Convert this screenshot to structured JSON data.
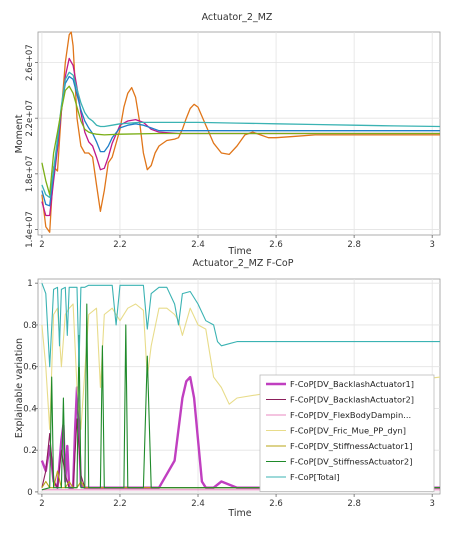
{
  "chart_data": [
    {
      "type": "line",
      "title": "Actuator_2_MZ",
      "xlabel": "Time",
      "ylabel": "Moment",
      "xlim": [
        1.99,
        3.02
      ],
      "ylim": [
        13600000,
        28200000
      ],
      "grid": true,
      "xticks": [
        2,
        2.2,
        2.4,
        2.6,
        2.8,
        3
      ],
      "xtick_labels": [
        "2",
        "2.2",
        "2.4",
        "2.6",
        "2.8",
        "3"
      ],
      "yticks": [
        14000000,
        18000000,
        22000000,
        26000000
      ],
      "ytick_labels": [
        "1.4e+07",
        "1.8e+07",
        "2.2e+07",
        "2.6e+07"
      ],
      "series": [
        {
          "color": "#e0761a",
          "x": [
            2.0,
            2.01,
            2.02,
            2.03,
            2.04,
            2.05,
            2.06,
            2.07,
            2.075,
            2.08,
            2.09,
            2.1,
            2.11,
            2.12,
            2.13,
            2.14,
            2.15,
            2.16,
            2.17,
            2.18,
            2.2,
            2.21,
            2.22,
            2.23,
            2.24,
            2.25,
            2.26,
            2.27,
            2.28,
            2.29,
            2.3,
            2.32,
            2.34,
            2.35,
            2.36,
            2.37,
            2.38,
            2.39,
            2.4,
            2.42,
            2.44,
            2.46,
            2.48,
            2.5,
            2.52,
            2.54,
            2.56,
            2.58,
            2.6,
            2.65,
            2.7,
            2.8,
            2.9,
            3.02
          ],
          "y": [
            16500000,
            14200000,
            13800000,
            18500000,
            18200000,
            22500000,
            26000000,
            28000000,
            28200000,
            27200000,
            22000000,
            20000000,
            19500000,
            19500000,
            19200000,
            17200000,
            15300000,
            16800000,
            18800000,
            19200000,
            21200000,
            22800000,
            23800000,
            24200000,
            23500000,
            21800000,
            19500000,
            18300000,
            18600000,
            19500000,
            20000000,
            20400000,
            20500000,
            20600000,
            21200000,
            22000000,
            22700000,
            23000000,
            22800000,
            21500000,
            20200000,
            19500000,
            19400000,
            20000000,
            20800000,
            21000000,
            20800000,
            20600000,
            20600000,
            20700000,
            20800000,
            20800000,
            20800000,
            20800000
          ]
        },
        {
          "color": "#c0188a",
          "x": [
            2.0,
            2.01,
            2.02,
            2.03,
            2.04,
            2.05,
            2.06,
            2.07,
            2.08,
            2.09,
            2.1,
            2.11,
            2.12,
            2.13,
            2.14,
            2.15,
            2.16,
            2.17,
            2.18,
            2.2,
            2.22,
            2.24,
            2.26,
            2.28,
            2.3,
            2.35,
            2.4,
            2.5,
            2.6,
            2.8,
            3.02
          ],
          "y": [
            16000000,
            15000000,
            15000000,
            17500000,
            19800000,
            22500000,
            25000000,
            26300000,
            25800000,
            24200000,
            22400000,
            21000000,
            20300000,
            20000000,
            19200000,
            18300000,
            18400000,
            19200000,
            20200000,
            21500000,
            21800000,
            21900000,
            21700000,
            21200000,
            21000000,
            20900000,
            20900000,
            20900000,
            20900000,
            20900000,
            20900000
          ]
        },
        {
          "color": "#1f7fc8",
          "x": [
            2.0,
            2.01,
            2.02,
            2.03,
            2.04,
            2.05,
            2.06,
            2.07,
            2.08,
            2.09,
            2.1,
            2.11,
            2.12,
            2.13,
            2.14,
            2.15,
            2.16,
            2.17,
            2.18,
            2.2,
            2.22,
            2.24,
            2.26,
            2.28,
            2.3,
            2.35,
            2.4,
            2.5,
            2.6,
            2.8,
            3.02
          ],
          "y": [
            16800000,
            15800000,
            15700000,
            18000000,
            20200000,
            22800000,
            24500000,
            25000000,
            24800000,
            23700000,
            22600000,
            21800000,
            21300000,
            20900000,
            20300000,
            19600000,
            19600000,
            20000000,
            20600000,
            21300000,
            21500000,
            21600000,
            21500000,
            21300000,
            21100000,
            21100000,
            21100000,
            21100000,
            21100000,
            21100000,
            21100000
          ]
        },
        {
          "color": "#3bb3b3",
          "x": [
            2.0,
            2.01,
            2.02,
            2.03,
            2.04,
            2.05,
            2.06,
            2.07,
            2.08,
            2.09,
            2.1,
            2.11,
            2.12,
            2.13,
            2.14,
            2.15,
            2.16,
            2.18,
            2.2,
            2.25,
            2.3,
            2.4,
            2.5,
            2.6,
            2.7,
            2.8,
            2.9,
            3.02
          ],
          "y": [
            17200000,
            16500000,
            16300000,
            18300000,
            20500000,
            22900000,
            24800000,
            25300000,
            25100000,
            24100000,
            23100000,
            22400000,
            22000000,
            21800000,
            21500000,
            21400000,
            21400000,
            21500000,
            21600000,
            21700000,
            21700000,
            21700000,
            21650000,
            21600000,
            21550000,
            21500000,
            21450000,
            21400000
          ]
        },
        {
          "color": "#7aae16",
          "x": [
            2.0,
            2.01,
            2.02,
            2.03,
            2.04,
            2.05,
            2.06,
            2.07,
            2.08,
            2.09,
            2.1,
            2.11,
            2.12,
            2.13,
            2.14,
            2.16,
            2.2,
            2.3,
            2.4,
            2.6,
            3.02
          ],
          "y": [
            18800000,
            17500000,
            16500000,
            19500000,
            21000000,
            22600000,
            24000000,
            24300000,
            23800000,
            22800000,
            21800000,
            21200000,
            21000000,
            20900000,
            20850000,
            20800000,
            20850000,
            20900000,
            20900000,
            20900000,
            20900000
          ]
        }
      ]
    },
    {
      "type": "line",
      "title": "Actuator_2_MZ F-CoP",
      "xlabel": "Time",
      "ylabel": "Explainable variation",
      "xlim": [
        1.99,
        3.02
      ],
      "ylim": [
        -0.01,
        1.02
      ],
      "grid": true,
      "xticks": [
        2,
        2.2,
        2.4,
        2.6,
        2.8,
        3
      ],
      "xtick_labels": [
        "2",
        "2.2",
        "2.4",
        "2.6",
        "2.8",
        "3"
      ],
      "yticks": [
        0,
        0.2,
        0.4,
        0.6,
        0.8,
        1
      ],
      "ytick_labels": [
        "0",
        "0.2",
        "0.4",
        "0.6",
        "0.8",
        "1"
      ],
      "legend_position": "bottom-right",
      "series": [
        {
          "name": "F-CoP[DV_BacklashActuator1]",
          "color": "#c03fc0",
          "width": 2.4,
          "x": [
            2.0,
            2.01,
            2.02,
            2.03,
            2.04,
            2.05,
            2.055,
            2.06,
            2.065,
            2.07,
            2.08,
            2.085,
            2.09,
            2.095,
            2.1,
            2.11,
            2.2,
            2.3,
            2.34,
            2.36,
            2.37,
            2.38,
            2.39,
            2.4,
            2.41,
            2.42,
            2.44,
            2.46,
            2.5,
            2.6,
            3.02
          ],
          "y": [
            0.15,
            0.1,
            0.22,
            0.05,
            0.02,
            0.25,
            0.32,
            0.05,
            0.22,
            0.02,
            0.02,
            0.3,
            0.5,
            0.3,
            0.03,
            0.02,
            0.02,
            0.02,
            0.15,
            0.45,
            0.53,
            0.55,
            0.45,
            0.25,
            0.05,
            0.02,
            0.02,
            0.05,
            0.02,
            0.02,
            0.02
          ]
        },
        {
          "name": "F-CoP[DV_BacklashActuator2]",
          "color": "#8b1f5b",
          "width": 1.1,
          "x": [
            2.0,
            2.01,
            2.02,
            2.03,
            2.04,
            2.05,
            2.06,
            2.07,
            2.08,
            2.09,
            2.1,
            2.11,
            2.2,
            2.3,
            2.4,
            2.5,
            3.02
          ],
          "y": [
            0.02,
            0.1,
            0.28,
            0.05,
            0.02,
            0.2,
            0.08,
            0.02,
            0.02,
            0.35,
            0.08,
            0.02,
            0.02,
            0.02,
            0.02,
            0.02,
            0.02
          ]
        },
        {
          "name": "F-CoP[DV_FlexBodyDampin...",
          "color": "#e88ac0",
          "width": 1.1,
          "x": [
            2.0,
            2.1,
            2.2,
            2.3,
            2.4,
            2.5,
            2.6,
            3.02
          ],
          "y": [
            0.01,
            0.01,
            0.01,
            0.01,
            0.01,
            0.01,
            0.01,
            0.01
          ]
        },
        {
          "name": "F-CoP[DV_Fric_Mue_PP_dyn]",
          "color": "#e8dc8a",
          "width": 1.1,
          "x": [
            2.0,
            2.01,
            2.02,
            2.03,
            2.04,
            2.05,
            2.06,
            2.07,
            2.08,
            2.09,
            2.1,
            2.12,
            2.14,
            2.15,
            2.16,
            2.18,
            2.2,
            2.22,
            2.24,
            2.26,
            2.27,
            2.28,
            2.3,
            2.32,
            2.34,
            2.35,
            2.36,
            2.38,
            2.4,
            2.42,
            2.44,
            2.46,
            2.48,
            2.5,
            2.6,
            2.8,
            3.02
          ],
          "y": [
            0.8,
            0.6,
            0.3,
            0.85,
            0.88,
            0.6,
            0.85,
            0.88,
            0.9,
            0.5,
            0.3,
            0.85,
            0.88,
            0.5,
            0.85,
            0.88,
            0.82,
            0.88,
            0.9,
            0.87,
            0.55,
            0.7,
            0.88,
            0.88,
            0.85,
            0.82,
            0.75,
            0.88,
            0.8,
            0.78,
            0.55,
            0.5,
            0.42,
            0.45,
            0.48,
            0.5,
            0.55
          ]
        },
        {
          "name": "F-CoP[DV_StiffnessActuator1]",
          "color": "#b8a414",
          "width": 1.1,
          "x": [
            2.0,
            2.01,
            2.02,
            2.03,
            2.04,
            2.05,
            2.06,
            2.07,
            2.08,
            2.09,
            2.1,
            2.11,
            2.2,
            2.4,
            3.02
          ],
          "y": [
            0.02,
            0.05,
            0.02,
            0.02,
            0.1,
            0.02,
            0.02,
            0.05,
            0.02,
            0.02,
            0.05,
            0.02,
            0.02,
            0.02,
            0.02
          ]
        },
        {
          "name": "F-CoP[DV_StiffnessActuator2]",
          "color": "#1f8a2a",
          "width": 1.1,
          "x": [
            2.0,
            2.02,
            2.025,
            2.03,
            2.04,
            2.05,
            2.055,
            2.06,
            2.07,
            2.08,
            2.09,
            2.095,
            2.1,
            2.11,
            2.115,
            2.12,
            2.13,
            2.14,
            2.15,
            2.155,
            2.16,
            2.17,
            2.2,
            2.21,
            2.215,
            2.22,
            2.23,
            2.25,
            2.26,
            2.27,
            2.28,
            2.3,
            2.4,
            2.6,
            3.02
          ],
          "y": [
            0.01,
            0.02,
            0.55,
            0.02,
            0.02,
            0.02,
            0.45,
            0.02,
            0.02,
            0.02,
            0.02,
            0.75,
            0.02,
            0.02,
            0.9,
            0.02,
            0.02,
            0.02,
            0.02,
            0.7,
            0.02,
            0.02,
            0.02,
            0.02,
            0.8,
            0.02,
            0.02,
            0.02,
            0.02,
            0.65,
            0.02,
            0.02,
            0.02,
            0.02,
            0.02
          ]
        },
        {
          "name": "F-CoP[Total]",
          "color": "#3bb3b3",
          "width": 1.1,
          "x": [
            2.0,
            2.01,
            2.02,
            2.03,
            2.04,
            2.045,
            2.05,
            2.06,
            2.065,
            2.07,
            2.08,
            2.09,
            2.095,
            2.1,
            2.11,
            2.12,
            2.14,
            2.16,
            2.18,
            2.19,
            2.2,
            2.22,
            2.24,
            2.26,
            2.27,
            2.28,
            2.3,
            2.32,
            2.34,
            2.35,
            2.36,
            2.38,
            2.4,
            2.42,
            2.44,
            2.45,
            2.46,
            2.48,
            2.5,
            2.55,
            2.6,
            2.7,
            2.8,
            2.9,
            3.02
          ],
          "y": [
            1.0,
            0.95,
            0.6,
            0.97,
            0.98,
            0.7,
            0.97,
            0.98,
            0.75,
            0.98,
            0.98,
            0.98,
            0.6,
            0.98,
            0.98,
            0.99,
            0.99,
            0.99,
            0.99,
            0.8,
            0.99,
            0.99,
            0.99,
            0.99,
            0.78,
            0.95,
            0.98,
            0.98,
            0.9,
            0.8,
            0.95,
            0.96,
            0.9,
            0.82,
            0.8,
            0.72,
            0.7,
            0.71,
            0.72,
            0.72,
            0.72,
            0.72,
            0.72,
            0.72,
            0.72
          ]
        }
      ]
    }
  ]
}
